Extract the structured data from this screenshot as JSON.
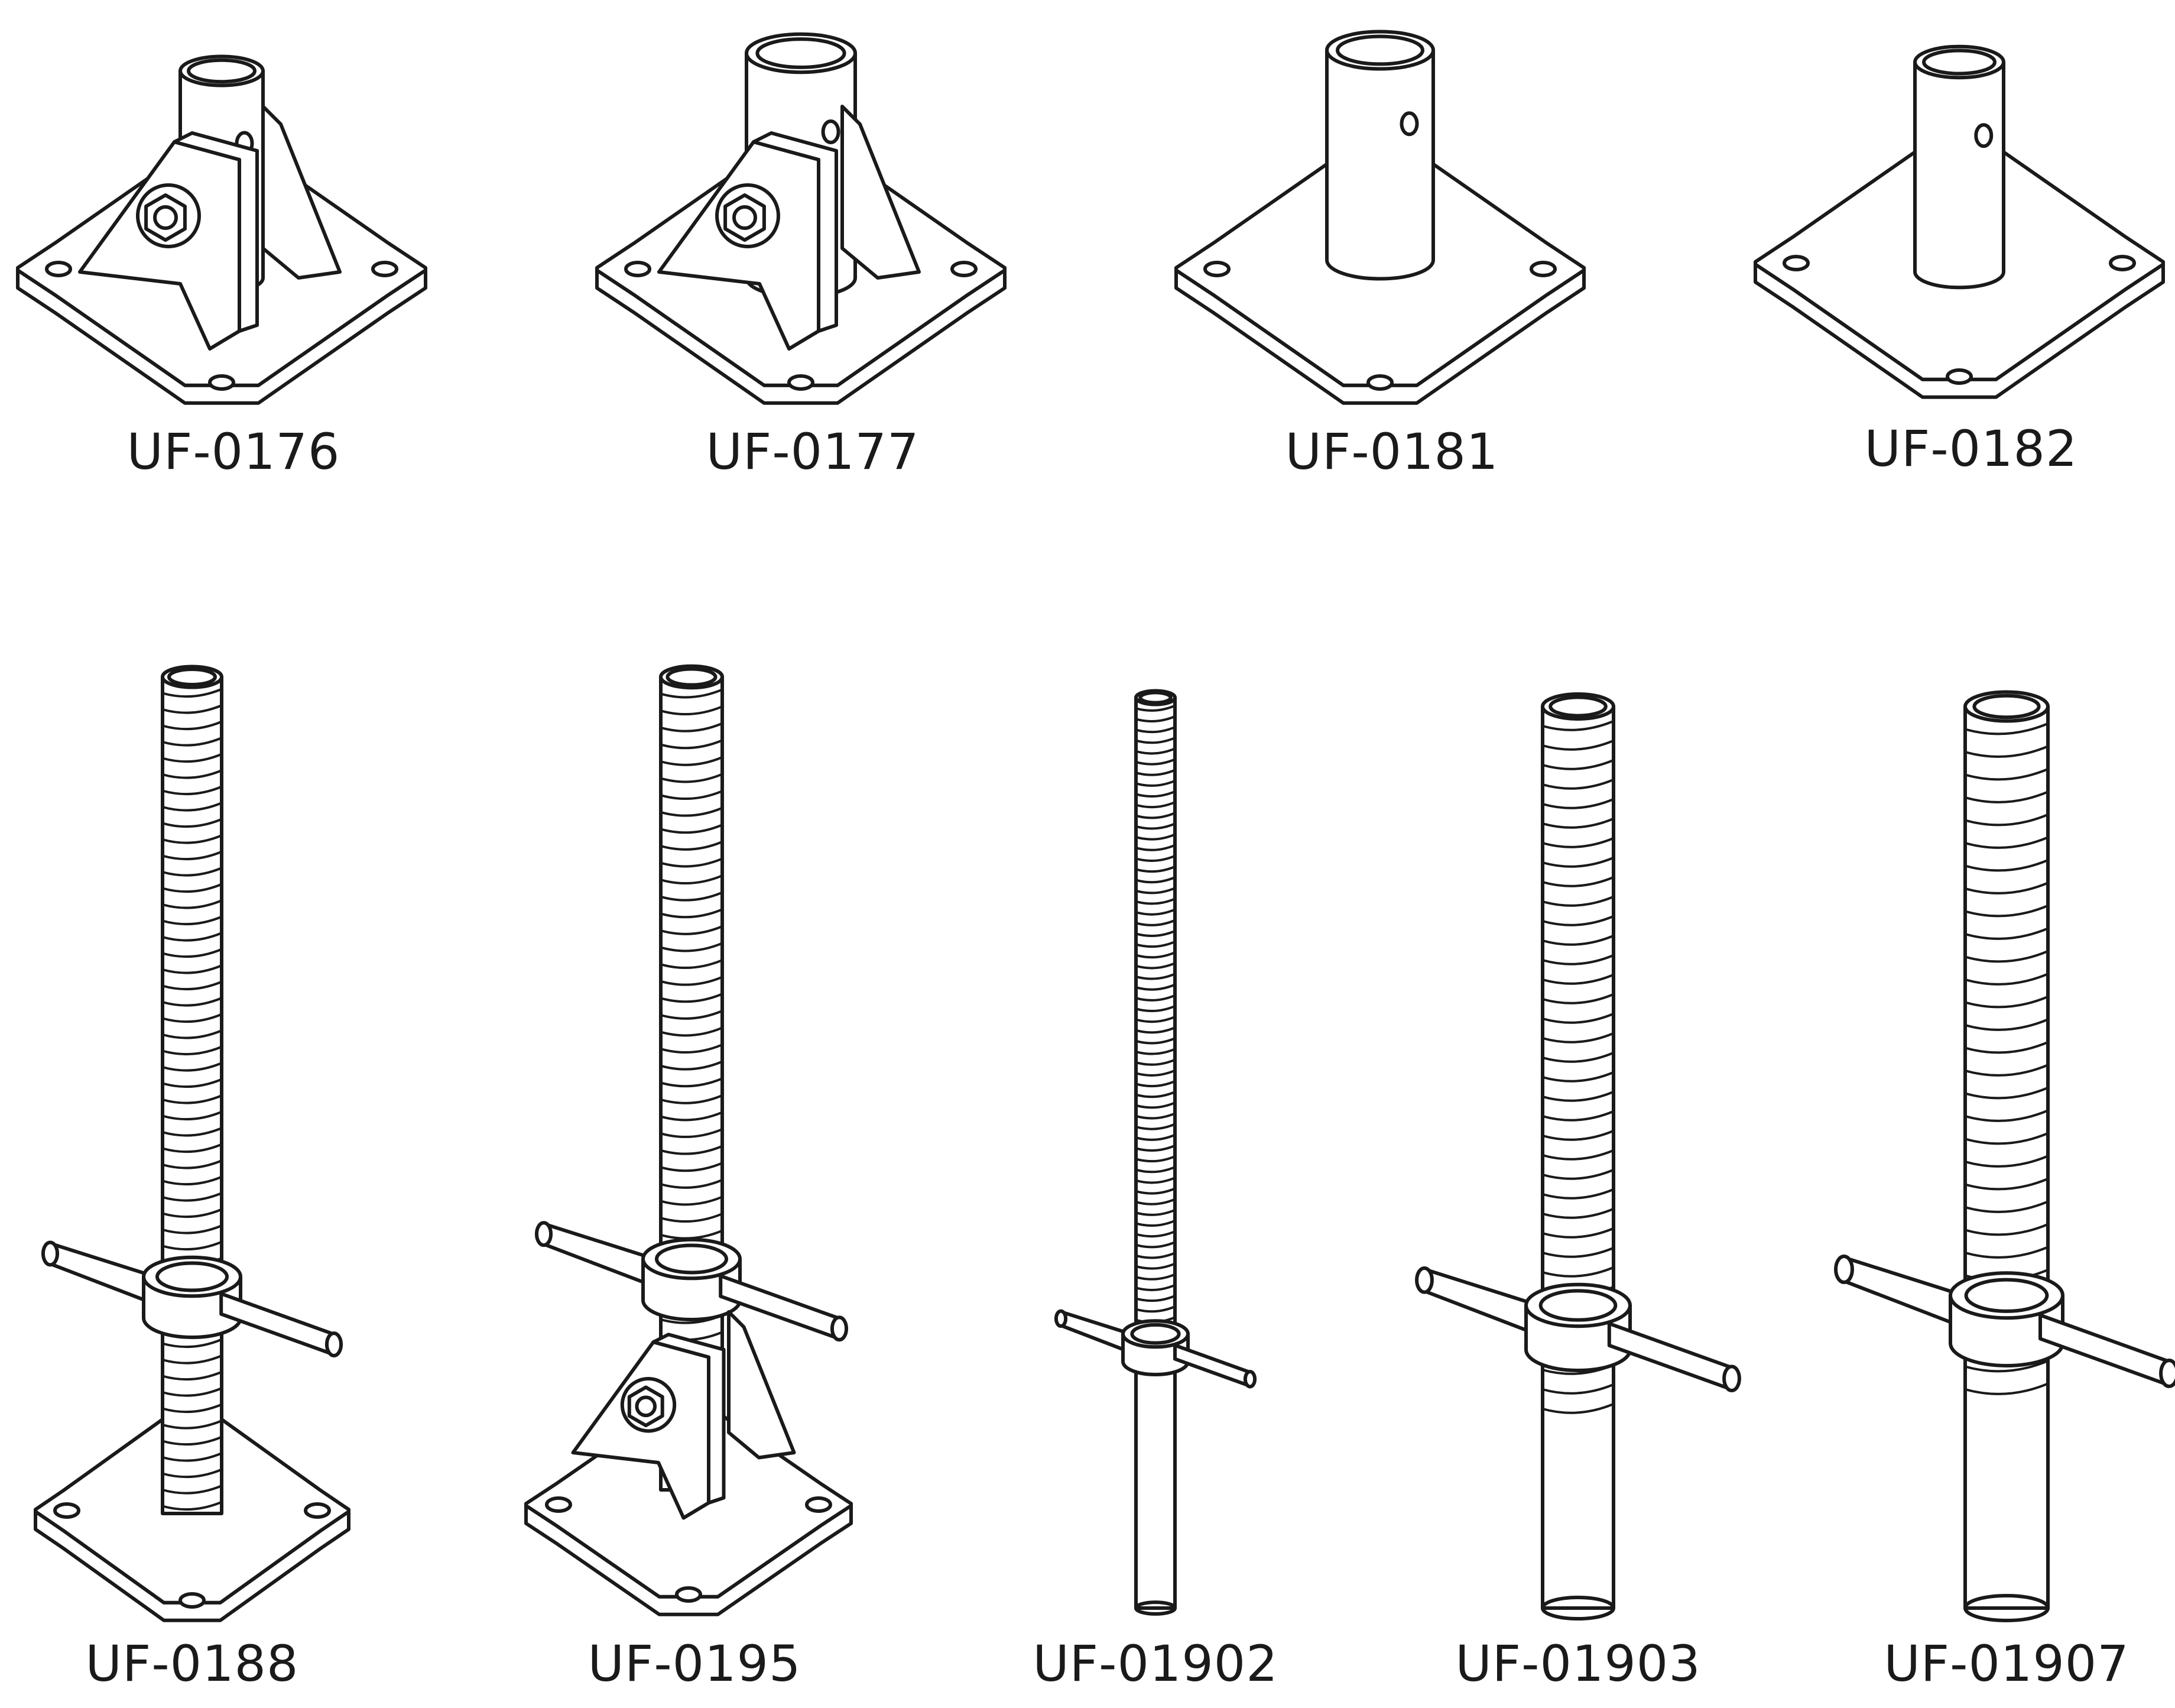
{
  "catalog": {
    "top_row": [
      {
        "id": "uf-0176",
        "label": "UF-0176",
        "type": "swivel-base-plate",
        "icon": "base-plate-with-swivel-bracket-icon"
      },
      {
        "id": "uf-0177",
        "label": "UF-0177",
        "type": "swivel-base-plate",
        "icon": "base-plate-with-swivel-bracket-icon"
      },
      {
        "id": "uf-0181",
        "label": "UF-0181",
        "type": "fixed-base-plate",
        "icon": "base-plate-with-tube-icon"
      },
      {
        "id": "uf-0182",
        "label": "UF-0182",
        "type": "fixed-base-plate",
        "icon": "base-plate-with-tube-icon"
      }
    ],
    "bottom_row": [
      {
        "id": "uf-0188",
        "label": "UF-0188",
        "type": "screw-jack-base-plate",
        "icon": "screw-jack-with-base-plate-icon"
      },
      {
        "id": "uf-0195",
        "label": "UF-0195",
        "type": "screw-jack-swivel",
        "icon": "screw-jack-with-swivel-base-icon"
      },
      {
        "id": "uf-01902",
        "label": "UF-01902",
        "type": "screw-jack-plain",
        "icon": "screw-jack-icon"
      },
      {
        "id": "uf-01903",
        "label": "UF-01903",
        "type": "screw-jack-plain",
        "icon": "screw-jack-icon"
      },
      {
        "id": "uf-01907",
        "label": "UF-01907",
        "type": "screw-jack-plain",
        "icon": "screw-jack-icon"
      }
    ]
  },
  "colors": {
    "line": "#1a1a1a",
    "fill": "#ffffff",
    "background": "#ffffff"
  }
}
